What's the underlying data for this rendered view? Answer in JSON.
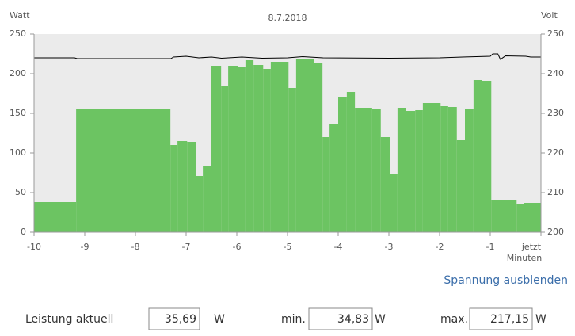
{
  "chart_data": {
    "type": "histogram",
    "title": "8.7.2018",
    "y_label": "Watt",
    "y2_label": "Volt",
    "x_label": "Minuten",
    "bins": [
      -10,
      -9.17,
      -7.31,
      -7.17,
      -6.98,
      -6.81,
      -6.67,
      -6.5,
      -6.31,
      -6.17,
      -5.98,
      -5.83,
      -5.67,
      -5.48,
      -5.33,
      -4.98,
      -4.83,
      -4.48,
      -4.31,
      -4.17,
      -4,
      -3.83,
      -3.67,
      -3.33,
      -3.16,
      -2.98,
      -2.83,
      -2.66,
      -2.48,
      -2.33,
      -1.98,
      -1.83,
      -1.66,
      -1.5,
      -1.33,
      -1.16,
      -0.98,
      -0.48,
      -0.33,
      0
    ],
    "values": [
      38,
      156,
      110,
      115,
      114,
      71,
      84,
      210,
      184,
      210,
      208,
      217,
      211,
      206,
      215,
      182,
      218,
      213,
      120,
      136,
      170,
      177,
      157,
      156,
      120,
      74,
      157,
      153,
      154,
      163,
      159,
      158,
      116,
      155,
      192,
      191,
      41,
      36,
      37
    ],
    "color": "#6cc462",
    "voltage": {
      "x": [
        -10,
        -9.2,
        -9.15,
        -7.3,
        -7.25,
        -7.0,
        -6.75,
        -6.5,
        -6.3,
        -5.9,
        -5.5,
        -5.0,
        -4.7,
        -4.3,
        -3.0,
        -2.0,
        -1.55,
        -1.0,
        -0.95,
        -0.85,
        -0.8,
        -0.7,
        -0.3,
        -0.2,
        0
      ],
      "values": [
        244,
        244,
        243.8,
        243.8,
        244.2,
        244.4,
        244.0,
        244.2,
        243.9,
        244.2,
        243.9,
        244.0,
        244.3,
        244.0,
        243.9,
        244.0,
        244.2,
        244.4,
        245.0,
        245.0,
        243.6,
        244.5,
        244.4,
        244.2,
        244.2
      ],
      "color": "#000000",
      "axis": "y2"
    },
    "xlim": [
      -10,
      0
    ],
    "xticks": [
      -10,
      -9,
      -8,
      -7,
      -6,
      -5,
      -4,
      -3,
      -2,
      -1,
      {
        "value": 0,
        "label": "jetzt"
      }
    ],
    "ylim": [
      0,
      250
    ],
    "yticks": [
      0,
      50,
      100,
      150,
      200,
      250
    ],
    "y2lim": [
      200,
      250
    ],
    "y2ticks": [
      200,
      210,
      220,
      230,
      240,
      250
    ]
  },
  "controls": {
    "toggle_link": "Spannung ausblenden",
    "current_label": "Leistung aktuell",
    "current_value": "35,69",
    "current_unit": "W",
    "min_label": "min.",
    "min_value": "34,83",
    "min_unit": "W",
    "max_label": "max.",
    "max_value": "217,15",
    "max_unit": "W"
  }
}
